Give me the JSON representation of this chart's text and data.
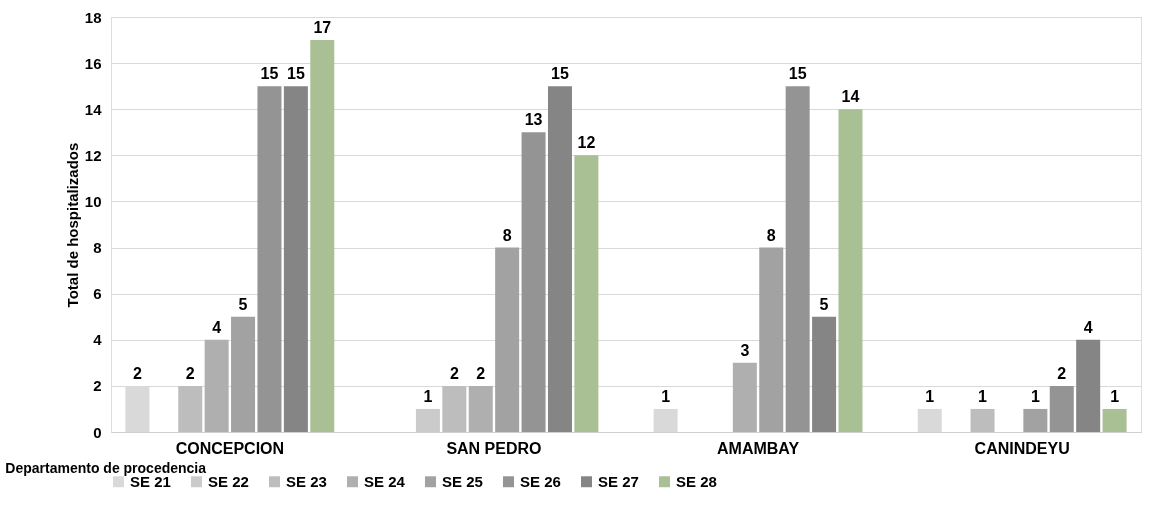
{
  "chart_data": {
    "type": "bar",
    "xlabel": "Departamento de procedencia",
    "ylabel": "Total de hospitalizados",
    "categories": [
      "CONCEPCION",
      "SAN PEDRO",
      "AMAMBAY",
      "CANINDEYU"
    ],
    "series": [
      {
        "name": "SE 21",
        "color": "#d9d9d9",
        "values": [
          2,
          null,
          1,
          1
        ]
      },
      {
        "name": "SE 22",
        "color": "#cbcbcb",
        "values": [
          null,
          1,
          null,
          null
        ]
      },
      {
        "name": "SE 23",
        "color": "#bdbdbd",
        "values": [
          2,
          2,
          null,
          1
        ]
      },
      {
        "name": "SE 24",
        "color": "#afafaf",
        "values": [
          4,
          2,
          3,
          null
        ]
      },
      {
        "name": "SE 25",
        "color": "#a2a2a2",
        "values": [
          5,
          8,
          8,
          1
        ]
      },
      {
        "name": "SE 26",
        "color": "#949494",
        "values": [
          15,
          13,
          15,
          2
        ]
      },
      {
        "name": "SE 27",
        "color": "#858585",
        "values": [
          15,
          15,
          5,
          4
        ]
      },
      {
        "name": "SE 28",
        "color": "#a9bf94",
        "values": [
          17,
          12,
          14,
          1
        ]
      }
    ],
    "ylim": [
      0,
      18
    ],
    "yticks": [
      0,
      2,
      4,
      6,
      8,
      10,
      12,
      14,
      16,
      18
    ],
    "grid": "y",
    "legend": "bottom",
    "data_labels": true
  }
}
